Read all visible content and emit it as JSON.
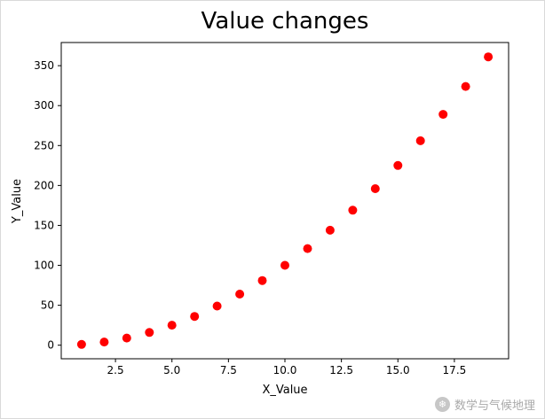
{
  "chart_data": {
    "type": "scatter",
    "title": "Value changes",
    "xlabel": "X_Value",
    "ylabel": "Y_Value",
    "x": [
      1,
      2,
      3,
      4,
      5,
      6,
      7,
      8,
      9,
      10,
      11,
      12,
      13,
      14,
      15,
      16,
      17,
      18,
      19
    ],
    "y": [
      1,
      4,
      9,
      16,
      25,
      36,
      49,
      64,
      81,
      100,
      121,
      144,
      169,
      196,
      225,
      256,
      289,
      324,
      361
    ],
    "xlim": [
      0.1,
      19.9
    ],
    "ylim": [
      -17,
      379
    ],
    "xticks": [
      2.5,
      5.0,
      7.5,
      10.0,
      12.5,
      15.0,
      17.5
    ],
    "xtick_labels": [
      "2.5",
      "5.0",
      "7.5",
      "10.0",
      "12.5",
      "15.0",
      "17.5"
    ],
    "yticks": [
      0,
      50,
      100,
      150,
      200,
      250,
      300,
      350
    ],
    "ytick_labels": [
      "0",
      "50",
      "100",
      "150",
      "200",
      "250",
      "300",
      "350"
    ],
    "marker_color": "#ff0000",
    "marker_radius": 5,
    "axis_color": "#000000",
    "grid": false,
    "legend": "none"
  },
  "watermark": {
    "icon": "snowflake-icon",
    "icon_glyph": "❄",
    "text": "数学与气候地理"
  }
}
